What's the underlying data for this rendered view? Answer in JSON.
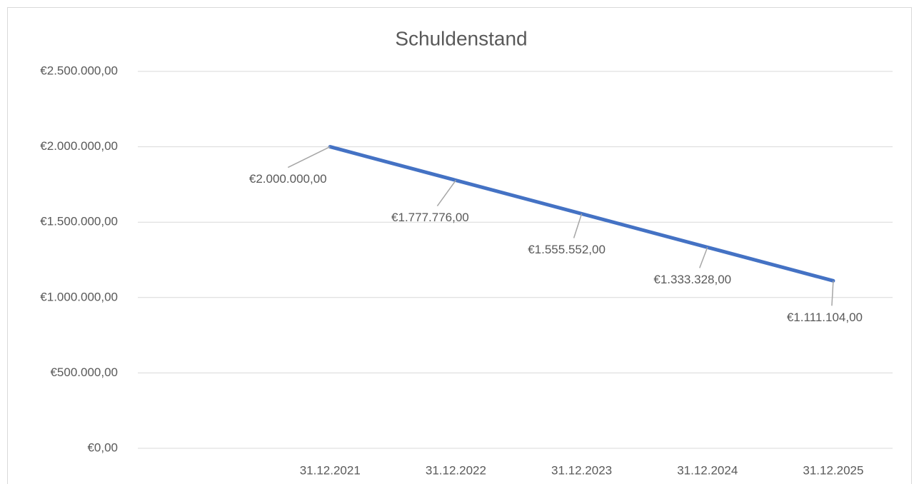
{
  "chart_data": {
    "type": "line",
    "title": "Schuldenstand",
    "categories": [
      null,
      "31.12.2021",
      "31.12.2022",
      "31.12.2023",
      "31.12.2024",
      "31.12.2025"
    ],
    "series": [
      {
        "name": "Schuldenstand",
        "color": "#4472c4",
        "values": [
          null,
          2000000,
          1777776,
          1555552,
          1333328,
          1111104
        ],
        "value_labels": [
          null,
          "€2.000.000,00",
          "€1.777.776,00",
          "€1.555.552,00",
          "€1.333.328,00",
          "€1.111.104,00"
        ]
      }
    ],
    "ylim": [
      0,
      2500000
    ],
    "yticks": [
      {
        "value": 0,
        "label": "€0,00"
      },
      {
        "value": 500000,
        "label": "€500.000,00"
      },
      {
        "value": 1000000,
        "label": "€1.000.000,00"
      },
      {
        "value": 1500000,
        "label": "€1.500.000,00"
      },
      {
        "value": 2000000,
        "label": "€2.000.000,00"
      },
      {
        "value": 2500000,
        "label": "€2.500.000,00"
      }
    ],
    "grid": true
  }
}
